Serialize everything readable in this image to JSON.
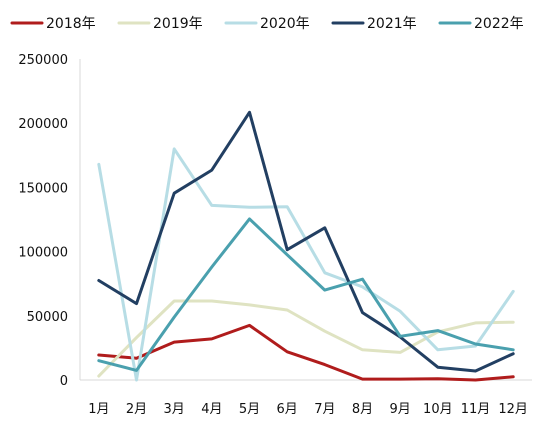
{
  "chart_data": {
    "type": "line",
    "categories": [
      "1月",
      "2月",
      "3月",
      "4月",
      "5月",
      "6月",
      "7月",
      "8月",
      "9月",
      "10月",
      "11月",
      "12月"
    ],
    "ylim": [
      0,
      250000
    ],
    "yticks": [
      "0",
      "50000",
      "100000",
      "150000",
      "200000",
      "250000"
    ],
    "grid": false,
    "legend_position": "top",
    "series": [
      {
        "name": "2018年",
        "color": "#b01c1c",
        "values": [
          19500,
          17000,
          29500,
          32000,
          42500,
          22000,
          12000,
          700,
          700,
          1000,
          0,
          2500
        ]
      },
      {
        "name": "2019年",
        "color": "#dfe3c2",
        "values": [
          3000,
          33000,
          61500,
          61500,
          58500,
          54500,
          38000,
          23500,
          21500,
          37500,
          44500,
          45000
        ]
      },
      {
        "name": "2020年",
        "color": "#b7dde5",
        "values": [
          168000,
          0,
          180000,
          136000,
          134500,
          135000,
          83500,
          72500,
          53500,
          23500,
          26500,
          69000
        ]
      },
      {
        "name": "2021年",
        "color": "#223f62",
        "values": [
          77500,
          59500,
          145500,
          163500,
          208500,
          101500,
          118500,
          52500,
          33500,
          10000,
          7000,
          20500
        ]
      },
      {
        "name": "2022年",
        "color": "#4aa0ae",
        "values": [
          15000,
          7500,
          49000,
          88000,
          125500,
          97500,
          70000,
          78500,
          34000,
          38500,
          28000,
          23500
        ]
      }
    ]
  }
}
